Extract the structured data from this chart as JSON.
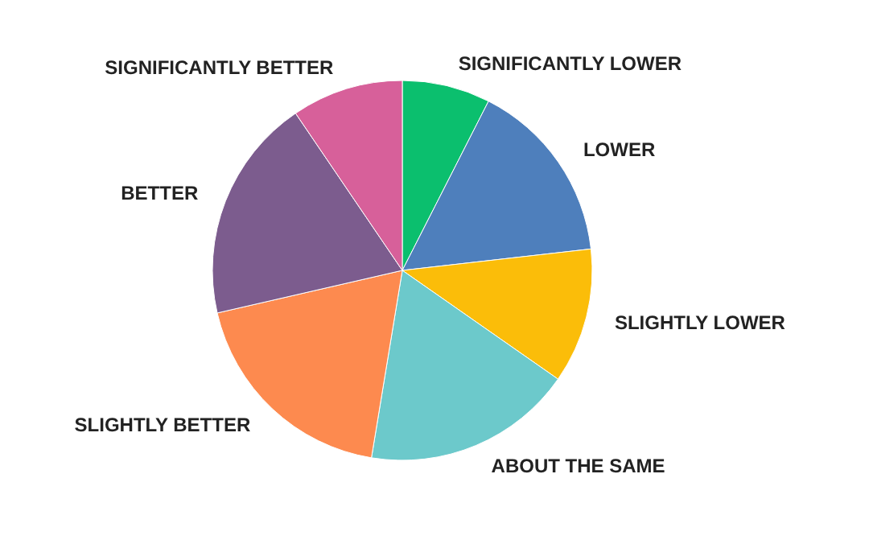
{
  "chart_data": {
    "type": "pie",
    "categories": [
      "SIGNIFICANTLY LOWER",
      "LOWER",
      "SLIGHTLY LOWER",
      "ABOUT THE SAME",
      "SLIGHTLY BETTER",
      "BETTER",
      "SIGNIFICANTLY BETTER"
    ],
    "values": [
      7.5,
      15.7,
      11.5,
      17.9,
      18.8,
      19.1,
      9.5
    ],
    "colors": [
      "#0bbf6e",
      "#4e7fbc",
      "#fbbd09",
      "#6cc9cb",
      "#fd8a4f",
      "#7c5c8e",
      "#d7609a"
    ],
    "legend": false
  }
}
